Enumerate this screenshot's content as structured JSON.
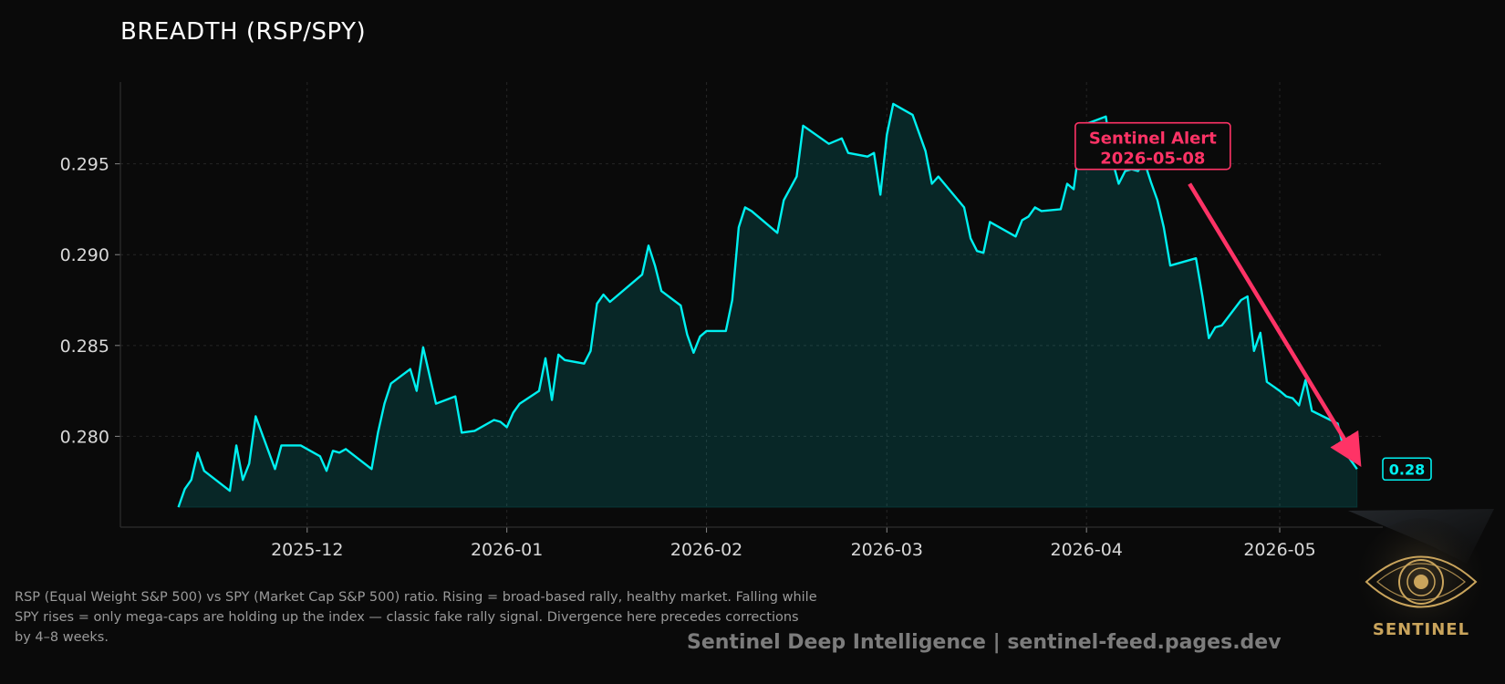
{
  "chart_data": {
    "type": "area",
    "title": "BREADTH (RSP/SPY)",
    "xlabel": "",
    "ylabel": "",
    "x_ticks": [
      "2025-12",
      "2026-01",
      "2026-02",
      "2026-03",
      "2026-04",
      "2026-05"
    ],
    "y_ticks": [
      "0.280",
      "0.285",
      "0.290",
      "0.295"
    ],
    "xlim": [
      "2025-11-02",
      "2026-05-17"
    ],
    "ylim": [
      0.275,
      0.2995
    ],
    "fill_base": 0.2761,
    "grid": true,
    "series": [
      {
        "color": "#00f0f0",
        "points": [
          [
            "2025-11-11",
            0.2761
          ],
          [
            "2025-11-12",
            0.2771
          ],
          [
            "2025-11-13",
            0.2776
          ],
          [
            "2025-11-14",
            0.2791
          ],
          [
            "2025-11-15",
            0.2781
          ],
          [
            "2025-11-19",
            0.277
          ],
          [
            "2025-11-20",
            0.2795
          ],
          [
            "2025-11-21",
            0.2776
          ],
          [
            "2025-11-22",
            0.2785
          ],
          [
            "2025-11-23",
            0.2811
          ],
          [
            "2025-11-26",
            0.2782
          ],
          [
            "2025-11-27",
            0.2795
          ],
          [
            "2025-11-30",
            0.2795
          ],
          [
            "2025-12-03",
            0.2789
          ],
          [
            "2025-12-04",
            0.2781
          ],
          [
            "2025-12-05",
            0.2792
          ],
          [
            "2025-12-06",
            0.2791
          ],
          [
            "2025-12-07",
            0.2793
          ],
          [
            "2025-12-11",
            0.2782
          ],
          [
            "2025-12-12",
            0.2802
          ],
          [
            "2025-12-13",
            0.2818
          ],
          [
            "2025-12-14",
            0.2829
          ],
          [
            "2025-12-17",
            0.2837
          ],
          [
            "2025-12-18",
            0.2825
          ],
          [
            "2025-12-19",
            0.2849
          ],
          [
            "2025-12-21",
            0.2818
          ],
          [
            "2025-12-24",
            0.2822
          ],
          [
            "2025-12-25",
            0.2802
          ],
          [
            "2025-12-27",
            0.2803
          ],
          [
            "2025-12-30",
            0.2809
          ],
          [
            "2025-12-31",
            0.2808
          ],
          [
            "2026-01-01",
            0.2805
          ],
          [
            "2026-01-02",
            0.2813
          ],
          [
            "2026-01-03",
            0.2818
          ],
          [
            "2026-01-06",
            0.2825
          ],
          [
            "2026-01-07",
            0.2843
          ],
          [
            "2026-01-08",
            0.282
          ],
          [
            "2026-01-09",
            0.2845
          ],
          [
            "2026-01-10",
            0.2842
          ],
          [
            "2026-01-13",
            0.284
          ],
          [
            "2026-01-14",
            0.2847
          ],
          [
            "2026-01-15",
            0.2873
          ],
          [
            "2026-01-16",
            0.2878
          ],
          [
            "2026-01-17",
            0.2874
          ],
          [
            "2026-01-22",
            0.2889
          ],
          [
            "2026-01-23",
            0.2905
          ],
          [
            "2026-01-24",
            0.2894
          ],
          [
            "2026-01-25",
            0.288
          ],
          [
            "2026-01-28",
            0.2872
          ],
          [
            "2026-01-29",
            0.2856
          ],
          [
            "2026-01-30",
            0.2846
          ],
          [
            "2026-01-31",
            0.2855
          ],
          [
            "2026-02-01",
            0.2858
          ],
          [
            "2026-02-04",
            0.2858
          ],
          [
            "2026-02-05",
            0.2875
          ],
          [
            "2026-02-06",
            0.2915
          ],
          [
            "2026-02-07",
            0.2926
          ],
          [
            "2026-02-08",
            0.2924
          ],
          [
            "2026-02-12",
            0.2912
          ],
          [
            "2026-02-13",
            0.293
          ],
          [
            "2026-02-15",
            0.2943
          ],
          [
            "2026-02-16",
            0.2971
          ],
          [
            "2026-02-20",
            0.2961
          ],
          [
            "2026-02-22",
            0.2964
          ],
          [
            "2026-02-23",
            0.2956
          ],
          [
            "2026-02-26",
            0.2954
          ],
          [
            "2026-02-27",
            0.2956
          ],
          [
            "2026-02-28",
            0.2933
          ],
          [
            "2026-03-01",
            0.2966
          ],
          [
            "2026-03-02",
            0.2983
          ],
          [
            "2026-03-05",
            0.2977
          ],
          [
            "2026-03-06",
            0.2967
          ],
          [
            "2026-03-07",
            0.2957
          ],
          [
            "2026-03-08",
            0.2939
          ],
          [
            "2026-03-09",
            0.2943
          ],
          [
            "2026-03-13",
            0.2926
          ],
          [
            "2026-03-14",
            0.2909
          ],
          [
            "2026-03-15",
            0.2902
          ],
          [
            "2026-03-16",
            0.2901
          ],
          [
            "2026-03-17",
            0.2918
          ],
          [
            "2026-03-21",
            0.291
          ],
          [
            "2026-03-22",
            0.2919
          ],
          [
            "2026-03-23",
            0.2921
          ],
          [
            "2026-03-24",
            0.2926
          ],
          [
            "2026-03-25",
            0.2924
          ],
          [
            "2026-03-28",
            0.2925
          ],
          [
            "2026-03-29",
            0.2939
          ],
          [
            "2026-03-30",
            0.2936
          ],
          [
            "2026-03-31",
            0.2962
          ],
          [
            "2026-04-01",
            0.2972
          ],
          [
            "2026-04-04",
            0.2976
          ],
          [
            "2026-04-05",
            0.2952
          ],
          [
            "2026-04-06",
            0.2939
          ],
          [
            "2026-04-07",
            0.2946
          ],
          [
            "2026-04-08",
            0.2947
          ],
          [
            "2026-04-09",
            0.2946
          ],
          [
            "2026-04-10",
            0.2951
          ],
          [
            "2026-04-11",
            0.294
          ],
          [
            "2026-04-12",
            0.293
          ],
          [
            "2026-04-13",
            0.2915
          ],
          [
            "2026-04-14",
            0.2894
          ],
          [
            "2026-04-18",
            0.2898
          ],
          [
            "2026-04-19",
            0.2877
          ],
          [
            "2026-04-20",
            0.2854
          ],
          [
            "2026-04-21",
            0.286
          ],
          [
            "2026-04-22",
            0.2861
          ],
          [
            "2026-04-25",
            0.2875
          ],
          [
            "2026-04-26",
            0.2877
          ],
          [
            "2026-04-27",
            0.2847
          ],
          [
            "2026-04-28",
            0.2857
          ],
          [
            "2026-04-29",
            0.283
          ],
          [
            "2026-05-01",
            0.2825
          ],
          [
            "2026-05-02",
            0.2822
          ],
          [
            "2026-05-03",
            0.2821
          ],
          [
            "2026-05-04",
            0.2817
          ],
          [
            "2026-05-05",
            0.2831
          ],
          [
            "2026-05-06",
            0.2814
          ],
          [
            "2026-05-10",
            0.2807
          ],
          [
            "2026-05-11",
            0.2792
          ],
          [
            "2026-05-13",
            0.2782
          ]
        ]
      }
    ],
    "annotation": {
      "text": [
        "Sentinel Alert",
        "2026-05-08"
      ],
      "color": "#ff3366",
      "label_at": [
        "2026-04-12",
        0.2954
      ],
      "arrow_from": [
        "2026-04-17",
        0.2939
      ],
      "arrow_to": [
        "2026-05-13",
        0.2787
      ]
    },
    "last_value": {
      "label": "0.28",
      "at": [
        "2026-05-17",
        0.2782
      ],
      "color": "#00f0f0"
    }
  },
  "description": "RSP (Equal Weight S&P 500) vs SPY (Market Cap S&P 500) ratio. Rising = broad-based rally, healthy market. Falling while SPY rises = only mega-caps are holding up the index — classic fake rally signal. Divergence here precedes corrections by 4–8 weeks.",
  "footer": "Sentinel Deep Intelligence  |  sentinel-feed.pages.dev",
  "logo": {
    "wordmark": "SENTINEL",
    "icon": "eye-icon",
    "color": "#c9a45c"
  }
}
